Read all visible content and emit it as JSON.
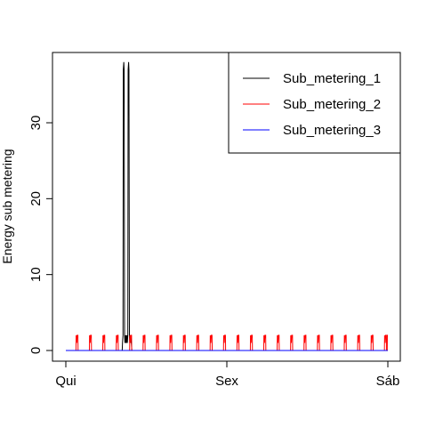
{
  "chart_data": {
    "type": "line",
    "title": "",
    "xlabel": "",
    "ylabel": "Energy sub metering",
    "x_ticks": [
      {
        "label": "Qui",
        "value": 0
      },
      {
        "label": "Sex",
        "value": 1
      },
      {
        "label": "Sáb",
        "value": 2
      }
    ],
    "y_ticks": [
      0,
      10,
      20,
      30
    ],
    "xlim": [
      0,
      2
    ],
    "ylim": [
      0,
      38
    ],
    "grid": false,
    "legend_position": "top-right",
    "series": [
      {
        "name": "Sub_metering_1",
        "color": "#000000",
        "x": [
          0,
          0.35,
          0.352,
          0.355,
          0.357,
          0.36,
          0.362,
          0.365,
          0.367,
          0.37,
          0.372,
          0.375,
          0.377,
          0.38,
          0.382,
          0.385,
          0.387,
          0.39,
          0.392,
          0.395,
          0.397,
          0.4,
          0.402,
          0.405,
          0.407,
          0.41,
          2
        ],
        "y": [
          0,
          0,
          1,
          2,
          37,
          38,
          37,
          2,
          1,
          2,
          1,
          2,
          1,
          2,
          1,
          2,
          37,
          38,
          37,
          2,
          1,
          2,
          1,
          2,
          1,
          0,
          0
        ]
      },
      {
        "name": "Sub_metering_2",
        "color": "#ff0000",
        "pulse_period": 0.0833,
        "pulse_start": 0.063,
        "pulse_value": 2,
        "x": [
          0,
          2
        ],
        "y": [
          0,
          0
        ]
      },
      {
        "name": "Sub_metering_3",
        "color": "#0000ff",
        "x": [
          0,
          2
        ],
        "y": [
          0,
          0
        ]
      }
    ]
  }
}
